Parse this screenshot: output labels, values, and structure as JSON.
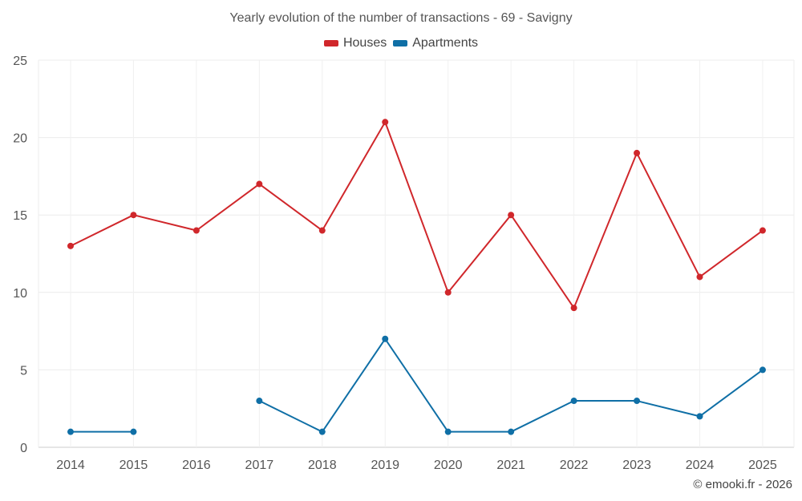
{
  "chart_data": {
    "type": "line",
    "title": "Yearly evolution of the number of transactions - 69 - Savigny",
    "categories": [
      "2014",
      "2015",
      "2016",
      "2017",
      "2018",
      "2019",
      "2020",
      "2021",
      "2022",
      "2023",
      "2024",
      "2025"
    ],
    "series": [
      {
        "name": "Houses",
        "color": "#d0272b",
        "values": [
          13,
          15,
          14,
          17,
          14,
          21,
          10,
          15,
          9,
          19,
          11,
          14
        ]
      },
      {
        "name": "Apartments",
        "color": "#0f6fa6",
        "values": [
          1,
          1,
          null,
          3,
          1,
          7,
          1,
          1,
          3,
          3,
          2,
          5
        ]
      }
    ],
    "ylim": [
      0,
      25
    ],
    "yticks": [
      0,
      5,
      10,
      15,
      20,
      25
    ],
    "grid": true,
    "legend_position": "top-center"
  },
  "credit": "© emooki.fr - 2026"
}
